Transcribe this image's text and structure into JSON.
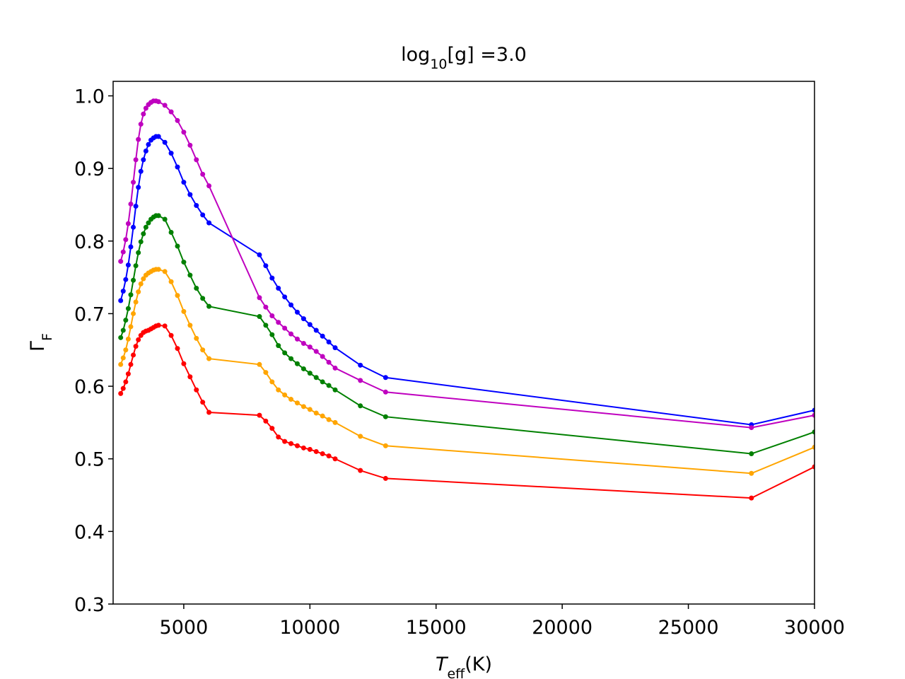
{
  "chart_data": {
    "type": "line",
    "title": [
      {
        "text": "log"
      },
      {
        "text": "10",
        "sub": true
      },
      {
        "text": "[g] =3.0"
      }
    ],
    "xlabel": [
      {
        "text": "T",
        "italic": true
      },
      {
        "text": "eff",
        "sub": true
      },
      {
        "text": "(K)"
      }
    ],
    "ylabel": [
      {
        "text": "Γ"
      },
      {
        "text": "F",
        "sub": true
      }
    ],
    "x": [
      2500,
      2600,
      2700,
      2800,
      2900,
      3000,
      3100,
      3200,
      3300,
      3400,
      3500,
      3600,
      3700,
      3800,
      3900,
      4000,
      4250,
      4500,
      4750,
      5000,
      5250,
      5500,
      5750,
      6000,
      8000,
      8250,
      8500,
      8750,
      9000,
      9250,
      9500,
      9750,
      10000,
      10250,
      10500,
      10750,
      11000,
      12000,
      13000,
      27500,
      30000
    ],
    "series": [
      {
        "color": "#0000ff",
        "values": [
          0.718,
          0.731,
          0.747,
          0.767,
          0.792,
          0.819,
          0.848,
          0.874,
          0.896,
          0.912,
          0.924,
          0.933,
          0.939,
          0.942,
          0.944,
          0.944,
          0.936,
          0.921,
          0.902,
          0.881,
          0.864,
          0.849,
          0.836,
          0.825,
          0.781,
          0.766,
          0.749,
          0.735,
          0.723,
          0.712,
          0.702,
          0.693,
          0.685,
          0.677,
          0.669,
          0.661,
          0.653,
          0.629,
          0.612,
          0.547,
          0.567
        ]
      },
      {
        "color": "#bf00bf",
        "values": [
          0.772,
          0.785,
          0.802,
          0.824,
          0.851,
          0.881,
          0.912,
          0.94,
          0.961,
          0.975,
          0.983,
          0.988,
          0.991,
          0.993,
          0.993,
          0.992,
          0.987,
          0.978,
          0.966,
          0.95,
          0.932,
          0.912,
          0.892,
          0.876,
          0.722,
          0.709,
          0.697,
          0.688,
          0.68,
          0.672,
          0.665,
          0.659,
          0.654,
          0.648,
          0.641,
          0.633,
          0.625,
          0.608,
          0.592,
          0.543,
          0.56
        ]
      },
      {
        "color": "#008000",
        "values": [
          0.667,
          0.677,
          0.691,
          0.707,
          0.726,
          0.746,
          0.766,
          0.784,
          0.799,
          0.81,
          0.819,
          0.825,
          0.83,
          0.833,
          0.835,
          0.835,
          0.83,
          0.812,
          0.793,
          0.771,
          0.753,
          0.735,
          0.721,
          0.71,
          0.696,
          0.684,
          0.671,
          0.656,
          0.646,
          0.638,
          0.631,
          0.624,
          0.618,
          0.612,
          0.606,
          0.601,
          0.595,
          0.573,
          0.558,
          0.507,
          0.537
        ]
      },
      {
        "color": "#ffa500",
        "values": [
          0.63,
          0.639,
          0.65,
          0.665,
          0.682,
          0.7,
          0.716,
          0.73,
          0.741,
          0.748,
          0.753,
          0.756,
          0.758,
          0.76,
          0.761,
          0.761,
          0.758,
          0.744,
          0.725,
          0.703,
          0.684,
          0.666,
          0.65,
          0.638,
          0.63,
          0.619,
          0.606,
          0.595,
          0.588,
          0.582,
          0.577,
          0.572,
          0.568,
          0.563,
          0.559,
          0.554,
          0.55,
          0.531,
          0.518,
          0.48,
          0.516
        ]
      },
      {
        "color": "#ff0000",
        "values": [
          0.59,
          0.597,
          0.606,
          0.617,
          0.63,
          0.643,
          0.655,
          0.664,
          0.67,
          0.674,
          0.676,
          0.677,
          0.679,
          0.681,
          0.683,
          0.684,
          0.683,
          0.67,
          0.652,
          0.631,
          0.613,
          0.595,
          0.578,
          0.564,
          0.56,
          0.552,
          0.542,
          0.53,
          0.524,
          0.521,
          0.518,
          0.515,
          0.513,
          0.51,
          0.507,
          0.504,
          0.5,
          0.484,
          0.473,
          0.446,
          0.489
        ]
      }
    ],
    "xlim": [
      2200,
      30000
    ],
    "xticks": [
      5000,
      10000,
      15000,
      20000,
      25000,
      30000
    ],
    "ylim": [
      0.3,
      1.02
    ],
    "yticks": [
      0.3,
      0.4,
      0.5,
      0.6,
      0.7,
      0.8,
      0.9,
      {
        "value": 1.0,
        "label": "1.0"
      }
    ],
    "grid": false
  }
}
